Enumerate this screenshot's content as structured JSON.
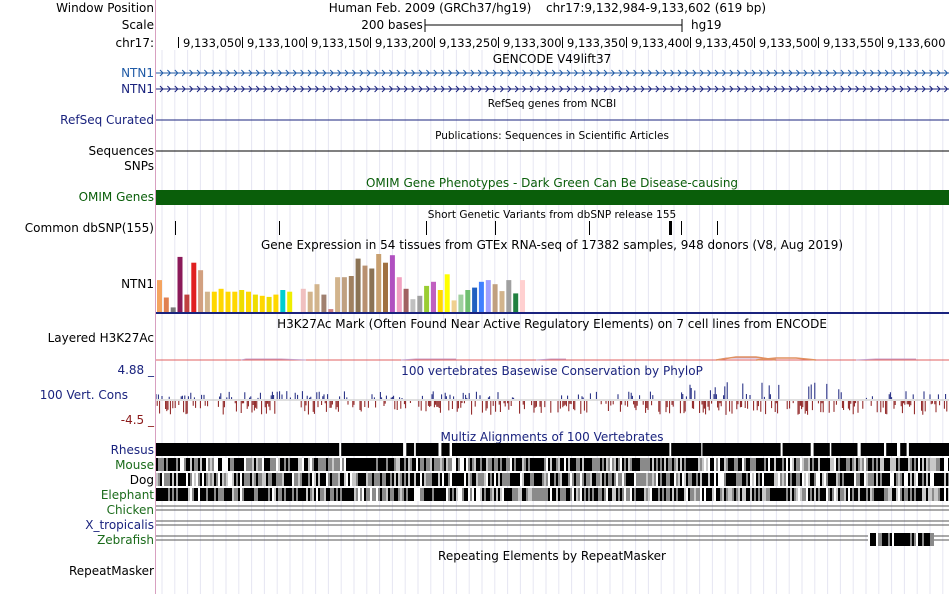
{
  "colors": {
    "refseq": "#1a237e",
    "omim": "#0a5e0a",
    "phylop_pos": "#1a237e",
    "phylop_neg": "#8b1a1a",
    "gencode": "#1f5aa6"
  },
  "header": {
    "window_position_label": "Window Position",
    "scale_label": "Scale",
    "chrom_label": "chr17:",
    "assembly": "Human Feb. 2009 (GRCh37/hg19)",
    "position": "chr17:9,132,984-9,133,602 (619 bp)",
    "scale_text": "200 bases",
    "db": "hg19"
  },
  "ruler": {
    "ticks": [
      "9,133,050",
      "9,133,100",
      "9,133,150",
      "9,133,200",
      "9,133,250",
      "9,133,300",
      "9,133,350",
      "9,133,400",
      "9,133,450",
      "9,133,500",
      "9,133,550",
      "9,133,600"
    ]
  },
  "tracks": {
    "gencode": {
      "title": "GENCODE V49lift37",
      "rows": [
        "NTN1",
        "NTN1"
      ]
    },
    "refseq": {
      "title": "RefSeq genes from NCBI",
      "label": "RefSeq Curated"
    },
    "publications": {
      "title": "Publications: Sequences in Scientific Articles",
      "labels": [
        "Sequences",
        "SNPs"
      ]
    },
    "omim": {
      "title": "OMIM Gene Phenotypes - Dark Green Can Be Disease-causing",
      "label": "OMIM Genes"
    },
    "dbsnp": {
      "title": "Short Genetic Variants from dbSNP release 155",
      "label": "Common dbSNP(155)"
    },
    "gtex": {
      "title": "Gene Expression in 54 tissues from GTEx RNA-seq of 17382 samples, 948 donors (V8, Aug 2019)",
      "label": "NTN1",
      "bar_levels": [
        0.55,
        0.25,
        0.08,
        0.95,
        0.3,
        0.85,
        0.72,
        0.35,
        0.35,
        0.4,
        0.35,
        0.35,
        0.38,
        0.35,
        0.3,
        0.28,
        0.26,
        0.3,
        0.38,
        0.35,
        0.42,
        0.4,
        0.35,
        0.48,
        0.3,
        0.05,
        0.6,
        0.6,
        0.62,
        0.92,
        0.8,
        0.75,
        1.0,
        0.85,
        0.98,
        0.6,
        0.4,
        0.22,
        0.28,
        0.45,
        0.52,
        0.38,
        0.65,
        0.2,
        0.3,
        0.38,
        0.42,
        0.52,
        0.55,
        0.48,
        0.36,
        0.55,
        0.32,
        0.55
      ],
      "bar_colors": [
        "#f4a460",
        "#e08050",
        "#7a7a7a",
        "#8b1a5a",
        "#c04040",
        "#e02020",
        "#d2a080",
        "#d2b48c",
        "#ffd700",
        "#ffd700",
        "#ffd700",
        "#ffd700",
        "#eedd00",
        "#ffd700",
        "#eedd00",
        "#ffd700",
        "#eedd00",
        "#ffd700",
        "#00ced1",
        "#eeee00",
        "#ffffff",
        "#f0c0c0",
        "#d2b48c",
        "#d2b48c",
        "#a08070",
        "#cc8080",
        "#d2b48c",
        "#c0a080",
        "#a08060",
        "#8b7355",
        "#b89070",
        "#8b7355",
        "#c8a070",
        "#a07040",
        "#b050c0",
        "#f0a0c0",
        "#a06060",
        "#c0c0c0",
        "#a0a0a0",
        "#9acd32",
        "#c060c0",
        "#ffd700",
        "#ffff00",
        "#f0d090",
        "#a0d0a0",
        "#70c070",
        "#2060c0",
        "#4080ff",
        "#a0a0ff",
        "#c0a080",
        "#d2b48c",
        "#a0a0a0",
        "#208040",
        "#ffd0d0"
      ]
    },
    "h3k27ac": {
      "title": "H3K27Ac Mark (Often Found Near Active Regulatory Elements) on 7 cell lines from ENCODE",
      "label": "Layered H3K27Ac"
    },
    "phylop": {
      "title": "100 vertebrates Basewise Conservation by PhyloP",
      "label": "100 Vert. Cons",
      "max": "4.88 _",
      "min": "-4.5 _"
    },
    "multiz": {
      "title": "Multiz Alignments of 100 Vertebrates",
      "species": [
        "Rhesus",
        "Mouse",
        "Dog",
        "Elephant",
        "Chicken",
        "X_tropicalis",
        "Zebrafish"
      ]
    },
    "rmsk": {
      "title": "Repeating Elements by RepeatMasker",
      "label": "RepeatMasker"
    }
  }
}
